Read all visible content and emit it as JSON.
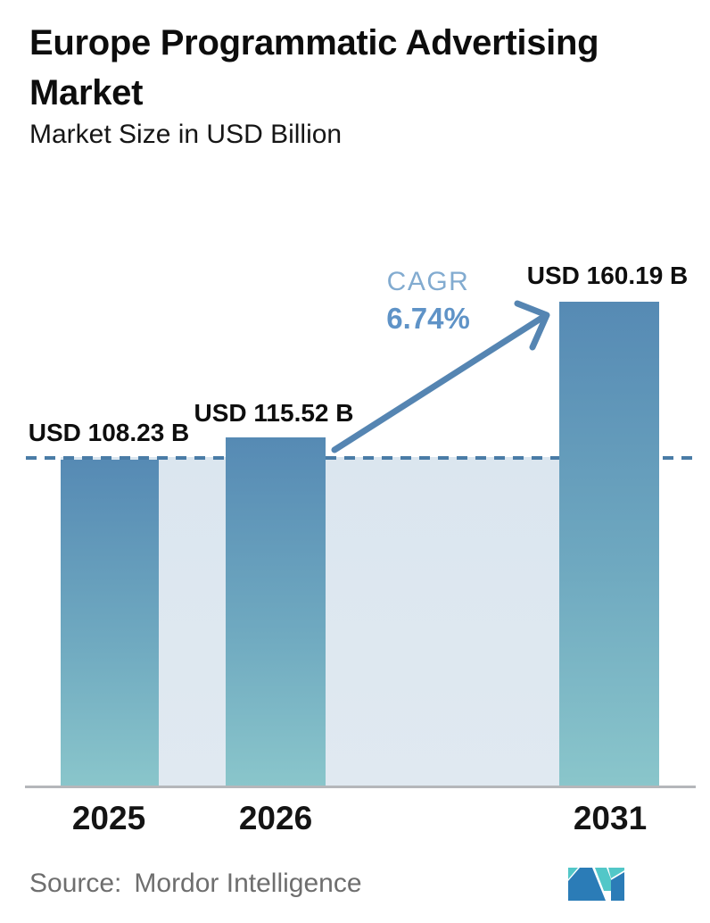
{
  "header": {
    "title": "Europe Programmatic Advertising Market",
    "subtitle": "Market Size in USD Billion"
  },
  "chart_data": {
    "type": "bar",
    "title": "Europe Programmatic Advertising Market",
    "subtitle": "Market Size in USD Billion",
    "unit": "USD Billion",
    "categories": [
      "2025",
      "2026",
      "2031"
    ],
    "values": [
      108.23,
      115.52,
      160.19
    ],
    "bar_labels": [
      "USD 108.23 B",
      "USD 115.52 B",
      "USD 160.19 B"
    ],
    "annotations": {
      "cagr_label": "CAGR",
      "cagr_value": "6.74%",
      "reference_line": "dashed horizontal line at the 2025 value (108.23)",
      "growth_arrow": "from 2026 bar top to 2031 bar top"
    },
    "ylim": [
      0,
      170
    ],
    "grid": false,
    "legend": false,
    "colors": {
      "bar_gradient_top": "#568ab4",
      "bar_gradient_bottom": "#8ac6cb",
      "band_fill": "#dfe8f1",
      "dashed_line": "#4a7ca6",
      "arrow": "#5585b2",
      "cagr_label": "#82abd0",
      "cagr_value": "#5f93c7",
      "axis_line": "#b5b7ba",
      "label_text": "#0e0e0e"
    }
  },
  "footer": {
    "source_label": "Source:",
    "source_name": "Mordor Intelligence",
    "logo": "mordor-intelligence-logo",
    "logo_colors": {
      "blue": "#2b7cb7",
      "teal": "#52c7c8"
    }
  }
}
